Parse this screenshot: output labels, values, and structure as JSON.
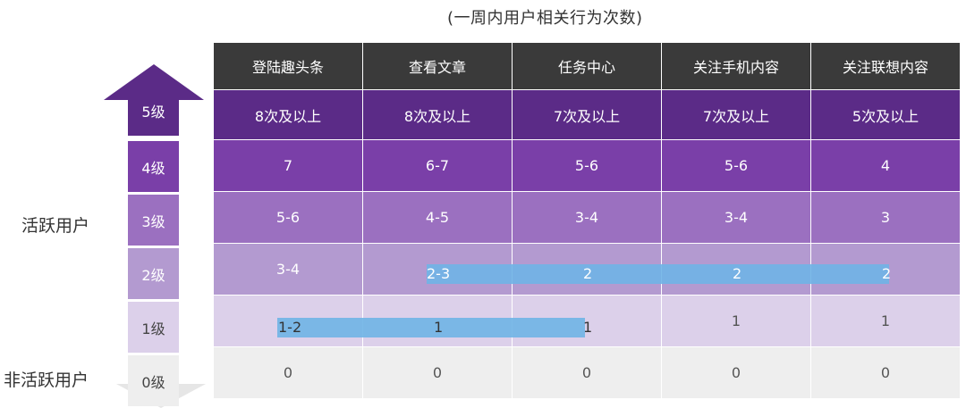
{
  "caption": "(一周内用户相关行为次数)",
  "side_labels": {
    "active": "活跃用户",
    "inactive": "非活跃用户"
  },
  "columns": [
    "登陆趣头条",
    "查看文章",
    "任务中心",
    "关注手机内容",
    "关注联想内容"
  ],
  "levels": [
    "5级",
    "4级",
    "3级",
    "2级",
    "1级",
    "0级"
  ],
  "rows": [
    [
      "8次及以上",
      "8次及以上",
      "7次及以上",
      "7次及以上",
      "5次及以上"
    ],
    [
      "7",
      "6-7",
      "5-6",
      "5-6",
      "4"
    ],
    [
      "5-6",
      "4-5",
      "3-4",
      "3-4",
      "3"
    ],
    [
      "3-4",
      "2-3",
      "2",
      "2",
      "2"
    ],
    [
      "1-2",
      "1",
      "1",
      "1",
      "1"
    ],
    [
      "0",
      "0",
      "0",
      "0",
      "0"
    ]
  ],
  "colors": {
    "header": "#3a3a3a",
    "level5": "#5b2b87",
    "level4": "#7a3fa8",
    "level3": "#9b70c0",
    "level2": "#b39ad0",
    "level1": "#dcd0ea",
    "level0": "#eeeeee",
    "highlight": "#6fb4e6"
  }
}
